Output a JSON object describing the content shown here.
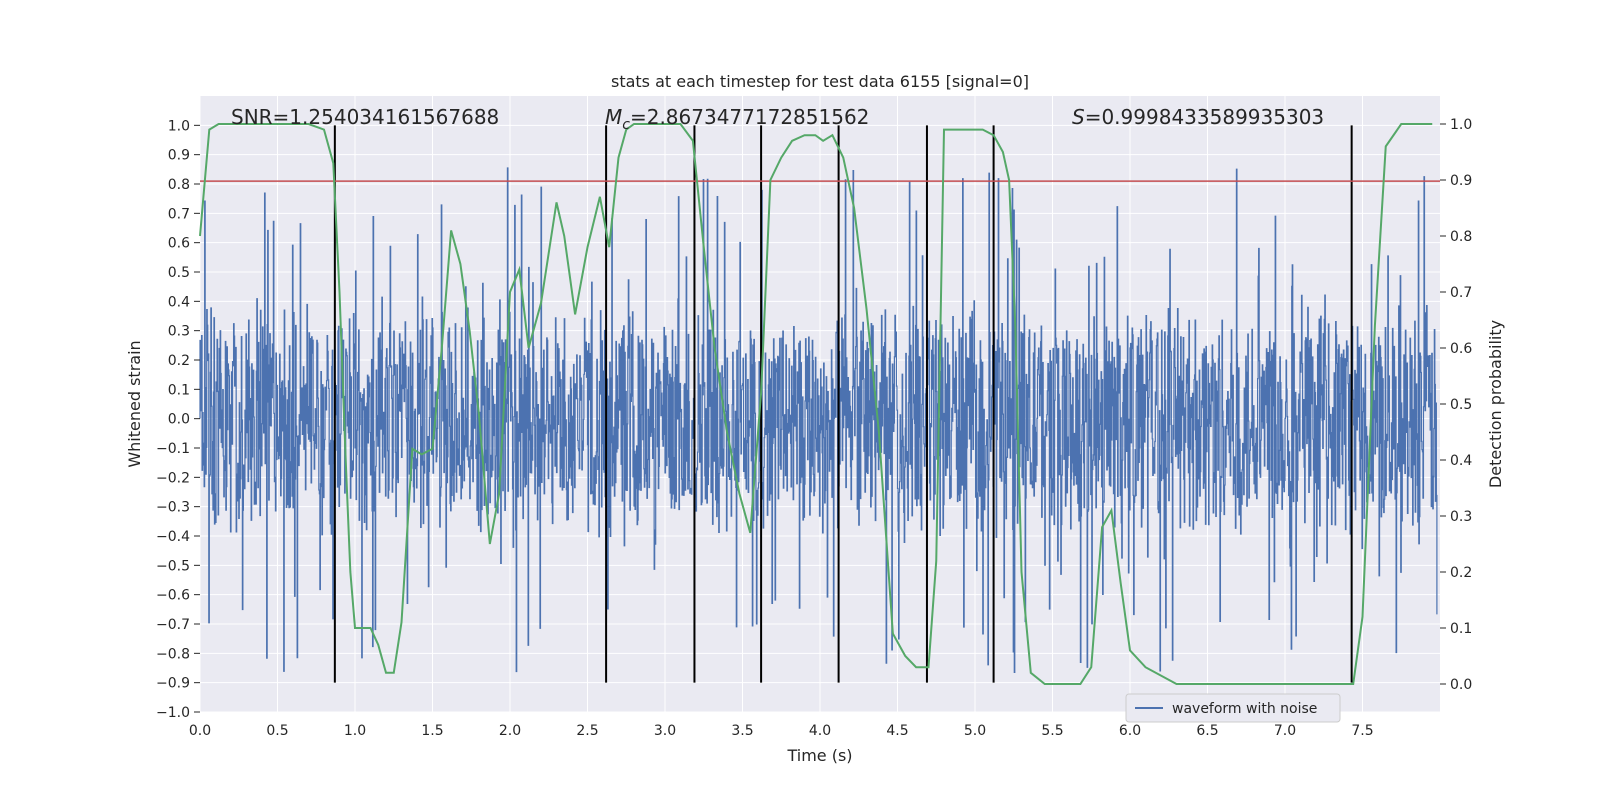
{
  "chart_data": {
    "type": "line",
    "title": "stats at each timestep for test data 6155 [signal=0]",
    "xlabel": "Time (s)",
    "ylabel": "Whitened strain",
    "y2label": "Detection probability",
    "xlim": [
      0.0,
      8.0
    ],
    "ylim": [
      -1.0,
      1.1
    ],
    "y2lim": [
      -0.05,
      1.05
    ],
    "xticks": [
      "0.0",
      "0.5",
      "1.0",
      "1.5",
      "2.0",
      "2.5",
      "3.0",
      "3.5",
      "4.0",
      "4.5",
      "5.0",
      "5.5",
      "6.0",
      "6.5",
      "7.0",
      "7.5"
    ],
    "yticks": [
      "-1.0",
      "-0.9",
      "-0.8",
      "-0.7",
      "-0.6",
      "-0.5",
      "-0.4",
      "-0.3",
      "-0.2",
      "-0.1",
      "0.0",
      "0.1",
      "0.2",
      "0.3",
      "0.4",
      "0.5",
      "0.6",
      "0.7",
      "0.8",
      "0.9",
      "1.0"
    ],
    "y2ticks": [
      "0.0",
      "0.1",
      "0.2",
      "0.3",
      "0.4",
      "0.5",
      "0.6",
      "0.7",
      "0.8",
      "0.9",
      "1.0"
    ],
    "grid": true,
    "legend_position": "bottom-right",
    "series": [
      {
        "name": "waveform with noise",
        "color": "#4c72b0",
        "axis": "left",
        "description": "dense noisy strain signal",
        "envelope": {
          "typical_amplitude": 0.42,
          "max": 1.0,
          "min": -0.91
        }
      },
      {
        "axis": "right",
        "color": "#55a868",
        "x": [
          0.0,
          0.06,
          0.12,
          0.2,
          0.3,
          0.4,
          0.5,
          0.6,
          0.7,
          0.8,
          0.86,
          0.9,
          0.94,
          0.97,
          1.0,
          1.05,
          1.1,
          1.15,
          1.2,
          1.25,
          1.3,
          1.37,
          1.43,
          1.5,
          1.56,
          1.62,
          1.68,
          1.74,
          1.8,
          1.87,
          1.93,
          2.0,
          2.06,
          2.12,
          2.2,
          2.3,
          2.35,
          2.42,
          2.5,
          2.58,
          2.64,
          2.7,
          2.75,
          2.8,
          2.9,
          3.0,
          3.1,
          3.18,
          3.25,
          3.32,
          3.4,
          3.48,
          3.55,
          3.62,
          3.68,
          3.75,
          3.82,
          3.9,
          3.97,
          4.02,
          4.08,
          4.15,
          4.22,
          4.3,
          4.38,
          4.47,
          4.55,
          4.62,
          4.7,
          4.75,
          4.8,
          4.9,
          4.97,
          5.05,
          5.12,
          5.18,
          5.22,
          5.26,
          5.3,
          5.36,
          5.45,
          5.6,
          5.68,
          5.75,
          5.82,
          5.88,
          5.94,
          6.0,
          6.1,
          6.3,
          6.6,
          6.8,
          6.9,
          7.0,
          7.2,
          7.33,
          7.38,
          7.44,
          7.5,
          7.58,
          7.65,
          7.75,
          7.9,
          7.95
        ],
        "y": [
          0.8,
          0.99,
          1.0,
          1.0,
          1.0,
          1.0,
          1.0,
          1.0,
          1.0,
          0.99,
          0.93,
          0.7,
          0.4,
          0.2,
          0.1,
          0.1,
          0.1,
          0.07,
          0.02,
          0.02,
          0.11,
          0.42,
          0.41,
          0.42,
          0.6,
          0.81,
          0.75,
          0.63,
          0.48,
          0.25,
          0.34,
          0.7,
          0.74,
          0.6,
          0.68,
          0.86,
          0.8,
          0.66,
          0.78,
          0.87,
          0.78,
          0.94,
          0.99,
          1.0,
          1.0,
          1.0,
          1.0,
          0.97,
          0.78,
          0.6,
          0.45,
          0.34,
          0.27,
          0.52,
          0.9,
          0.94,
          0.97,
          0.98,
          0.98,
          0.97,
          0.98,
          0.94,
          0.85,
          0.67,
          0.45,
          0.09,
          0.05,
          0.03,
          0.03,
          0.22,
          0.99,
          0.99,
          0.99,
          0.99,
          0.98,
          0.95,
          0.9,
          0.64,
          0.2,
          0.02,
          0.0,
          0.0,
          0.0,
          0.03,
          0.28,
          0.31,
          0.18,
          0.06,
          0.03,
          0.0,
          0.0,
          0.0,
          0.0,
          0.0,
          0.0,
          0.0,
          0.0,
          0.0,
          0.12,
          0.64,
          0.96,
          1.0,
          1.0,
          1.0
        ]
      }
    ],
    "threshold": {
      "value": 0.81,
      "color": "#c44e52"
    },
    "vlines": [
      0.87,
      2.62,
      3.19,
      3.62,
      4.12,
      4.69,
      5.12,
      7.43
    ],
    "annotations": {
      "snr": "SNR=1.254034161567688",
      "mc_symbol": "M",
      "mc_subscript": "c",
      "mc_value": "=2.8673477172851562",
      "s_symbol": "S",
      "s_value": "=0.9998433589935303"
    }
  }
}
